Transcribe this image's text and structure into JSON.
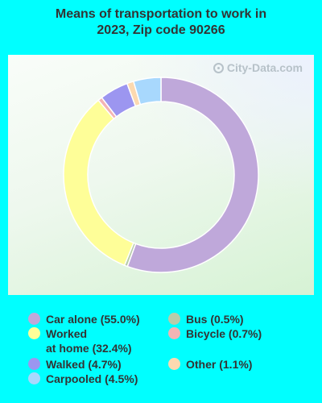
{
  "title_lines": [
    "Means of transportation to work in",
    "2023, Zip code 90266"
  ],
  "watermark": "City-Data.com",
  "chart_data": {
    "type": "pie",
    "title": "Means of transportation to work in 2023, Zip code 90266",
    "slices": [
      {
        "label": "Car alone (55.0%)",
        "value": 55.0,
        "color": "#bfa8da"
      },
      {
        "label": "Bus (0.5%)",
        "value": 0.5,
        "color": "#b8ccaa"
      },
      {
        "label": "Worked\nat home (32.4%)",
        "value": 32.4,
        "color": "#fefe98"
      },
      {
        "label": "Bicycle (0.7%)",
        "value": 0.7,
        "color": "#f3b4b4"
      },
      {
        "label": "Walked (4.7%)",
        "value": 4.7,
        "color": "#9c96f0"
      },
      {
        "label": "Other (1.1%)",
        "value": 1.1,
        "color": "#fcd9b0"
      },
      {
        "label": "Carpooled (4.5%)",
        "value": 4.5,
        "color": "#a8d8fd"
      }
    ],
    "legend_position": "bottom",
    "donut": true
  }
}
